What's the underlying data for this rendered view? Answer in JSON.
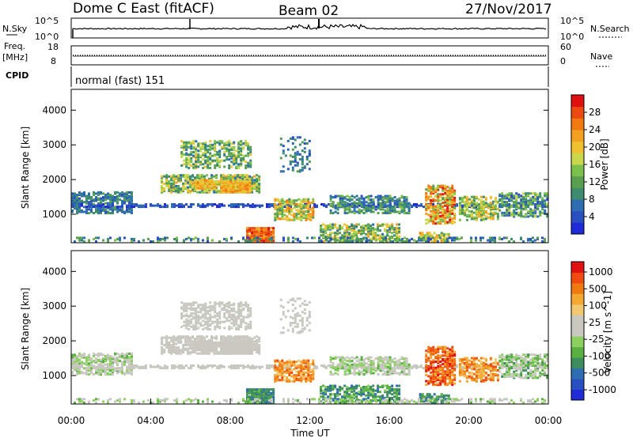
{
  "header": {
    "station": "Dome C East (fitACF)",
    "beam": "Beam 02",
    "date": "27/Nov/2017"
  },
  "top_panels": {
    "nsky_label": "N.Sky",
    "nsky_ticks": [
      "10^5",
      "10^0"
    ],
    "nsearch_label": "N.Search",
    "nsearch_ticks": [
      "10^5",
      "10^0"
    ],
    "freq_label": "Freq.",
    "freq_unit": "[MHz]",
    "freq_ticks": [
      "18",
      "8"
    ],
    "nave_label": "Nave",
    "nave_ticks": [
      "60",
      "0"
    ],
    "cpid_label": "CPID",
    "cpid_text": "normal (fast) 151"
  },
  "colors": {
    "power": [
      "#1f2bd6",
      "#2a4fc0",
      "#2d6db2",
      "#3c8c6e",
      "#58a050",
      "#7bc04a",
      "#c8d84a",
      "#f0c030",
      "#f3a020",
      "#f07a10",
      "#ec4a10",
      "#e01010"
    ],
    "velocity": [
      "#e01010",
      "#f04a10",
      "#f07a10",
      "#f3a830",
      "#f3c870",
      "#c8c8c0",
      "#c8c8c0",
      "#8cd060",
      "#58b040",
      "#3c8c5e",
      "#2d6db2",
      "#2a4fc0",
      "#1f2bd6"
    ]
  },
  "chart_data": [
    {
      "type": "heatmap",
      "name": "power",
      "ylabel": "Slant Range [km]",
      "ylim": [
        180,
        4600
      ],
      "yticks": [
        "1000",
        "2000",
        "3000",
        "4000"
      ],
      "colorbar_label": "Power [dB]",
      "colorbar_ticks": [
        "4",
        "8",
        "12",
        "16",
        "20",
        "24",
        "28"
      ],
      "colorbar_range": [
        0,
        32
      ]
    },
    {
      "type": "heatmap",
      "name": "velocity",
      "ylabel": "Slant Range [km]",
      "ylim": [
        180,
        4600
      ],
      "yticks": [
        "1000",
        "2000",
        "3000",
        "4000"
      ],
      "colorbar_label": "Velocity [m s^-1]",
      "colorbar_ticks": [
        "1000",
        "500",
        "100",
        "25",
        "-25",
        "-100",
        "-500",
        "-1000"
      ]
    }
  ],
  "x_axis": {
    "label": "Time UT",
    "ticks": [
      "00:00",
      "04:00",
      "08:00",
      "12:00",
      "16:00",
      "20:00",
      "00:00"
    ],
    "xlim_hours": [
      0,
      24
    ]
  }
}
